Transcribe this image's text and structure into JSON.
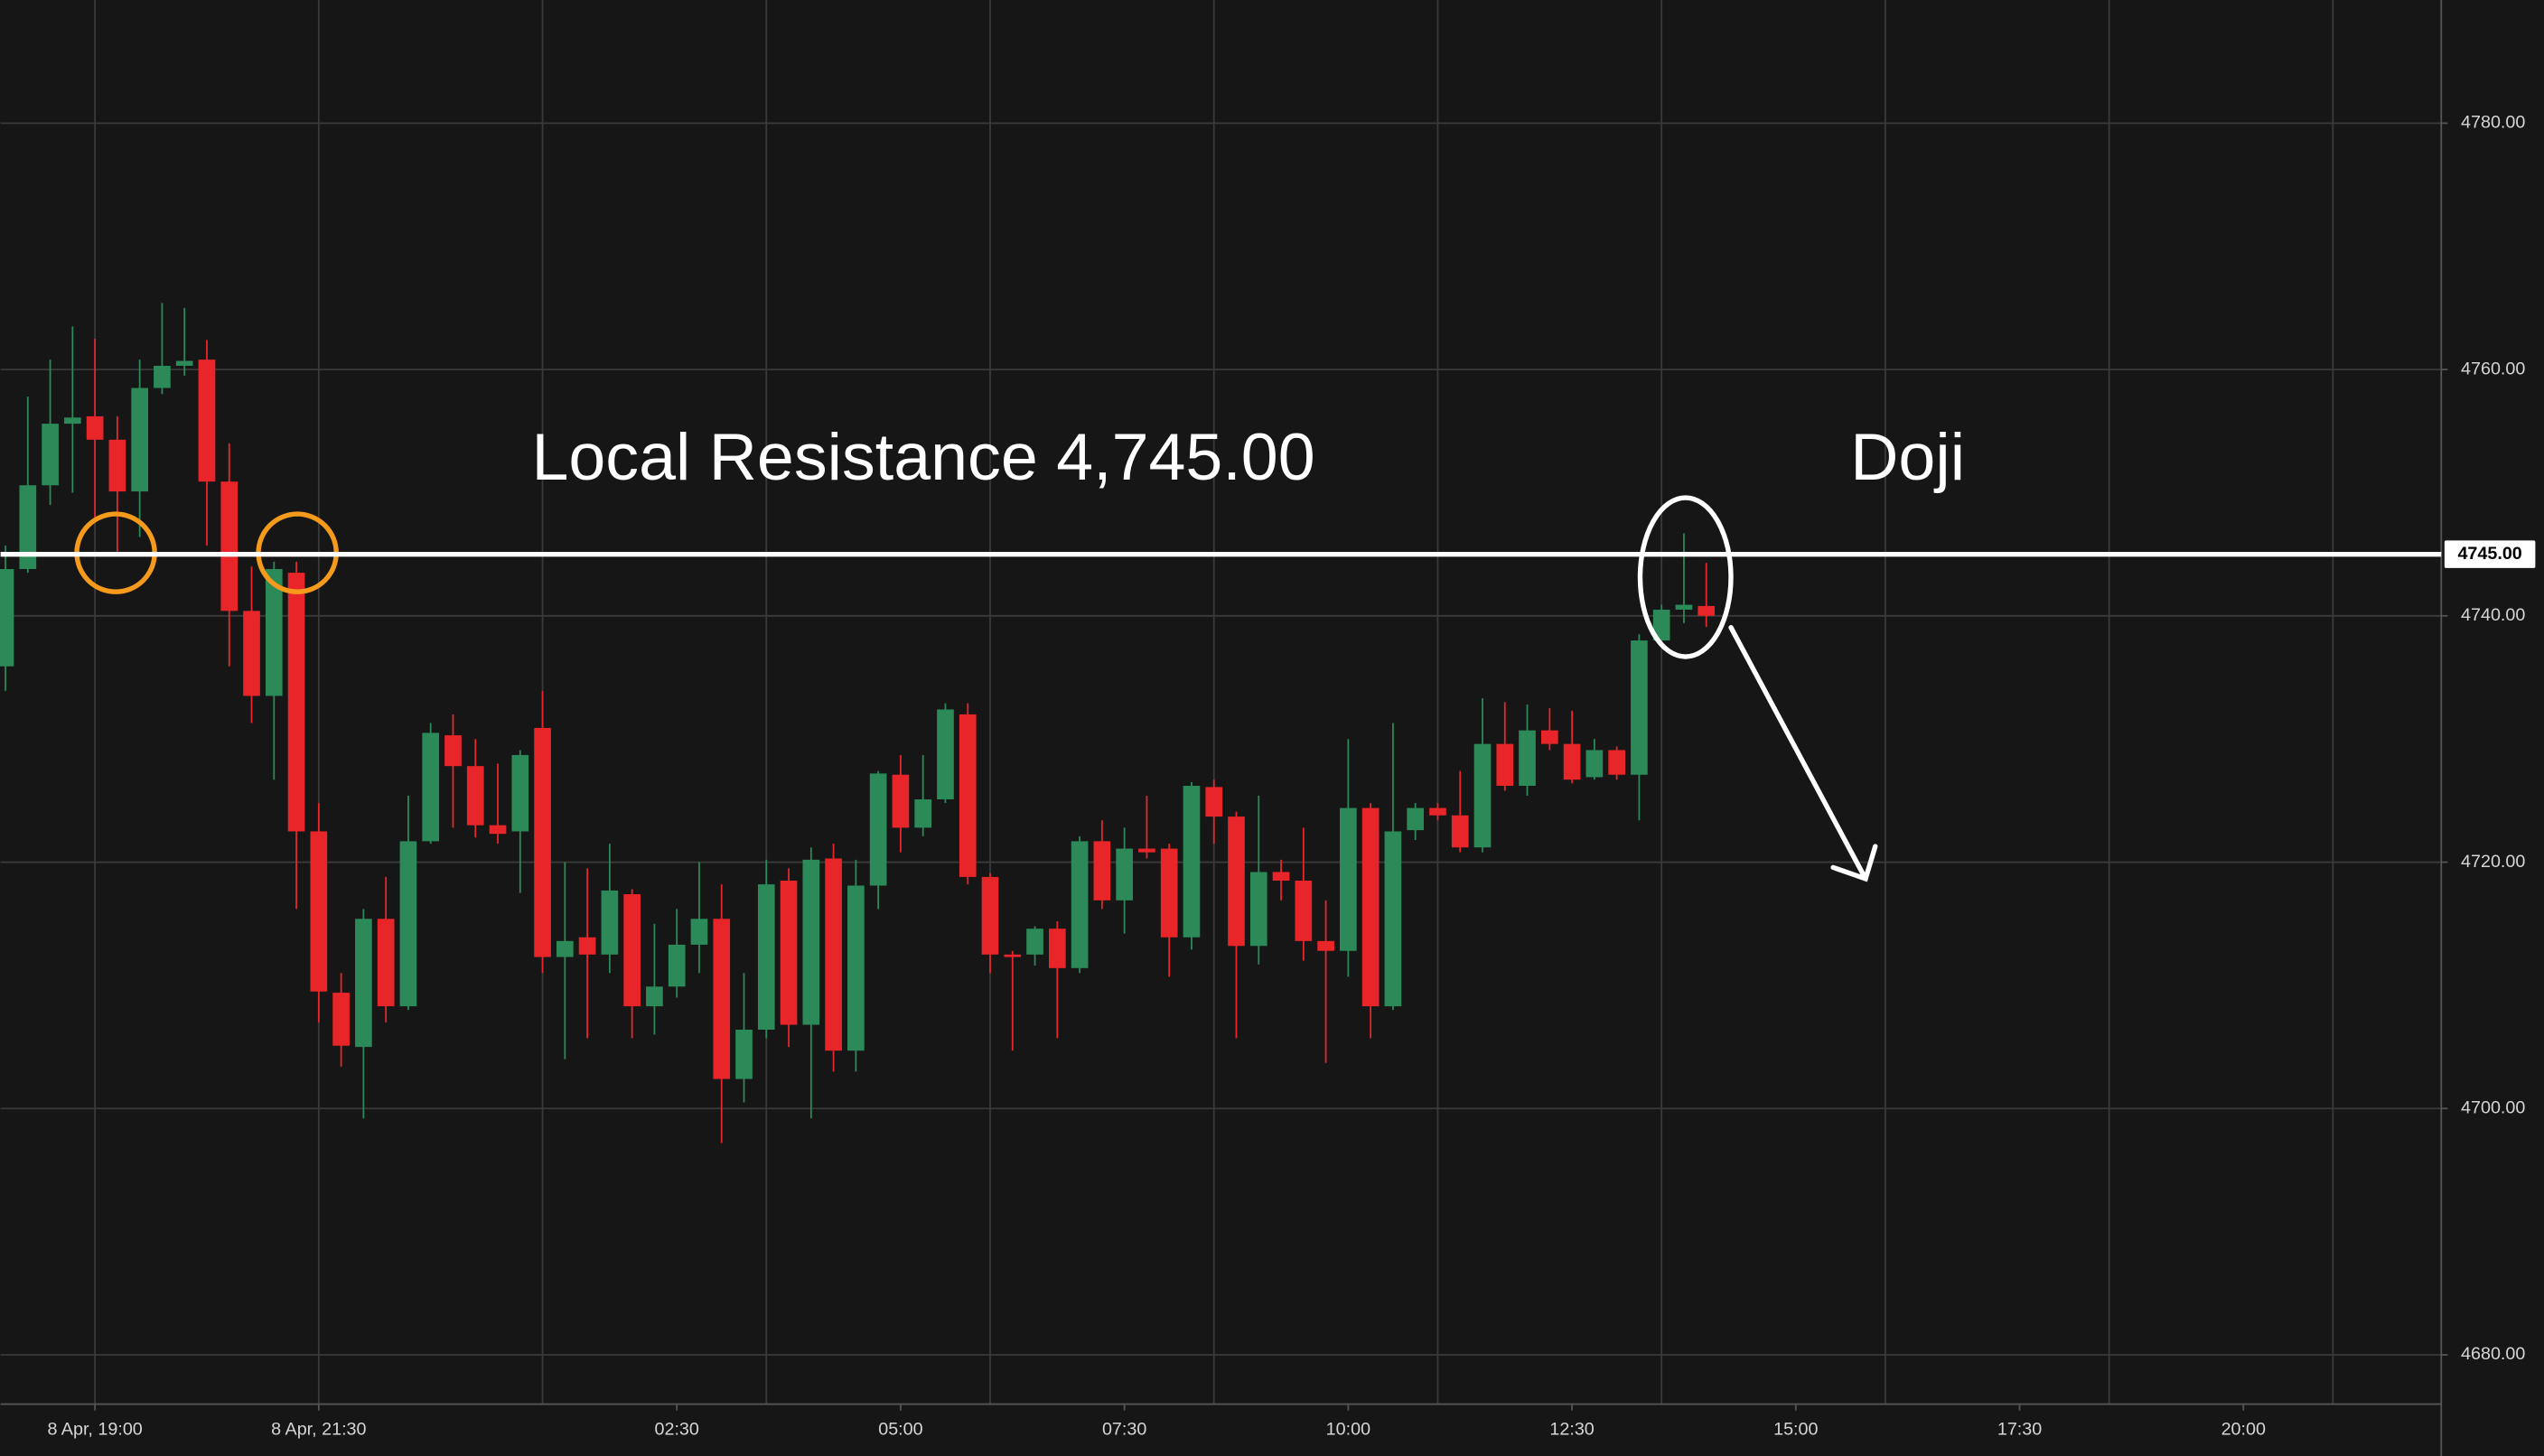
{
  "chart_data": {
    "type": "candlestick",
    "categories": [
      null,
      null,
      null,
      null,
      "8 Apr, 19:00",
      null,
      null,
      null,
      null,
      null,
      null,
      null,
      null,
      null,
      "8 Apr, 21:30",
      null,
      null,
      null,
      null,
      null,
      null,
      null,
      null,
      null,
      null,
      null,
      null,
      null,
      null,
      null,
      "02:30",
      null,
      null,
      null,
      null,
      null,
      null,
      null,
      null,
      null,
      "05:00",
      null,
      null,
      null,
      null,
      null,
      null,
      null,
      null,
      null,
      "07:30",
      null,
      null,
      null,
      null,
      null,
      null,
      null,
      null,
      null,
      "10:00",
      null,
      null,
      null,
      null,
      null,
      null,
      null,
      null,
      null,
      "12:30",
      null,
      null,
      null,
      null,
      null,
      null,
      null,
      null,
      null,
      "15:00",
      null,
      null,
      null,
      null,
      null,
      null,
      null,
      null,
      null,
      "17:30",
      null,
      null,
      null,
      null,
      null,
      null,
      null,
      null,
      null,
      "20:00",
      null,
      null,
      null,
      null,
      null,
      null,
      null,
      null
    ],
    "open": [
      4735.9,
      4743.8,
      4750.6,
      4755.6,
      4756.2,
      4754.3,
      4750.1,
      4758.5,
      4760.3,
      4760.8,
      4750.9,
      4740.4,
      4733.5,
      4743.5,
      4722.5,
      4709.4,
      4705.0,
      4715.4,
      4708.3,
      4721.7,
      4730.3,
      4727.8,
      4723.0,
      4722.5,
      4730.9,
      4712.3,
      4713.9,
      4712.5,
      4717.4,
      4708.3,
      4709.9,
      4713.3,
      4715.4,
      4702.4,
      4706.4,
      4718.5,
      4706.8,
      4720.3,
      4704.7,
      4718.1,
      4727.1,
      4722.8,
      4725.1,
      4732.0,
      4718.8,
      4712.5,
      4712.5,
      4714.6,
      4711.4,
      4721.7,
      4716.9,
      4721.1,
      4721.1,
      4713.9,
      4726.1,
      4723.7,
      4713.2,
      4719.2,
      4718.5,
      4713.6,
      4712.8,
      4724.4,
      4708.3,
      4722.6,
      4724.4,
      4723.8,
      4721.2,
      4729.6,
      4726.2,
      4730.7,
      4729.6,
      4726.9,
      4729.1,
      4727.1,
      4738.0,
      4740.5,
      4740.8,
      null,
      null,
      null,
      null,
      null,
      null,
      null,
      null,
      null,
      null,
      null,
      null,
      null,
      null,
      null,
      null,
      null,
      null,
      null,
      null,
      null,
      null,
      null,
      null,
      null,
      null,
      null,
      null,
      null,
      null,
      null,
      null
    ],
    "high": [
      4745.7,
      4757.8,
      4760.8,
      4763.5,
      4762.5,
      4756.2,
      4760.8,
      4765.4,
      4765.0,
      4762.4,
      4754.0,
      4744.0,
      4744.4,
      4744.4,
      4724.8,
      4711.0,
      4716.2,
      4718.8,
      4725.4,
      4731.3,
      4732.0,
      4730.0,
      4728.0,
      4729.1,
      4733.9,
      4720.0,
      4719.5,
      4721.5,
      4717.8,
      4715.0,
      4716.2,
      4720.0,
      4718.2,
      4711.0,
      4720.2,
      4719.5,
      4721.2,
      4721.5,
      4720.2,
      4727.4,
      4728.7,
      4728.7,
      4732.9,
      4732.9,
      4719.1,
      4712.8,
      4714.8,
      4715.2,
      4722.1,
      4723.4,
      4722.8,
      4725.4,
      4721.5,
      4726.5,
      4726.7,
      4724.1,
      4725.4,
      4720.2,
      4722.8,
      4716.9,
      4730.0,
      4724.8,
      4731.3,
      4724.8,
      4724.8,
      4727.4,
      4733.3,
      4733.0,
      4732.8,
      4732.5,
      4732.3,
      4730.0,
      4729.4,
      4738.5,
      4740.9,
      4746.7,
      4744.3,
      null,
      null,
      null,
      null,
      null,
      null,
      null,
      null,
      null,
      null,
      null,
      null,
      null,
      null,
      null,
      null,
      null,
      null,
      null,
      null,
      null,
      null,
      null,
      null,
      null,
      null,
      null,
      null,
      null,
      null,
      null,
      null
    ],
    "low": [
      4733.9,
      4743.5,
      4749.0,
      4750.0,
      4748.0,
      4745.1,
      4746.4,
      4758.0,
      4759.5,
      4745.7,
      4735.9,
      4731.3,
      4726.7,
      4716.2,
      4707.0,
      4703.4,
      4699.2,
      4707.0,
      4708.0,
      4721.5,
      4722.8,
      4722.0,
      4721.5,
      4717.5,
      4711.0,
      4704.0,
      4705.7,
      4711.0,
      4705.7,
      4706.0,
      4709.0,
      4711.0,
      4697.2,
      4700.5,
      4705.7,
      4705.0,
      4699.2,
      4703.0,
      4703.0,
      4716.2,
      4720.8,
      4722.1,
      4724.8,
      4718.2,
      4711.0,
      4704.7,
      4711.6,
      4705.7,
      4711.0,
      4716.2,
      4714.2,
      4720.3,
      4710.7,
      4712.9,
      4721.5,
      4705.7,
      4711.7,
      4716.9,
      4712.0,
      4703.7,
      4710.7,
      4705.7,
      4708.0,
      4721.8,
      4723.4,
      4720.8,
      4720.8,
      4725.8,
      4725.4,
      4729.1,
      4726.4,
      4726.7,
      4726.7,
      4723.4,
      4737.8,
      4739.4,
      4739.1,
      null,
      null,
      null,
      null,
      null,
      null,
      null,
      null,
      null,
      null,
      null,
      null,
      null,
      null,
      null,
      null,
      null,
      null,
      null,
      null,
      null,
      null,
      null,
      null,
      null,
      null,
      null,
      null,
      null,
      null,
      null,
      null
    ],
    "close": [
      4743.8,
      4750.6,
      4755.6,
      4756.1,
      4754.3,
      4750.1,
      4758.5,
      4760.3,
      4760.7,
      4750.9,
      4740.4,
      4733.5,
      4743.8,
      4722.5,
      4709.5,
      4705.1,
      4715.4,
      4708.3,
      4721.7,
      4730.5,
      4727.8,
      4723.0,
      4722.3,
      4728.7,
      4712.3,
      4713.6,
      4712.5,
      4717.7,
      4708.3,
      4709.9,
      4713.3,
      4715.4,
      4702.4,
      4706.4,
      4718.2,
      4706.8,
      4720.2,
      4704.7,
      4718.1,
      4727.2,
      4722.8,
      4725.1,
      4732.4,
      4718.8,
      4712.5,
      4712.3,
      4714.6,
      4711.4,
      4721.7,
      4716.9,
      4721.1,
      4720.8,
      4713.9,
      4726.2,
      4723.7,
      4713.2,
      4719.2,
      4718.5,
      4713.6,
      4712.8,
      4724.4,
      4708.3,
      4722.5,
      4724.4,
      4723.8,
      4721.2,
      4729.6,
      4726.2,
      4730.7,
      4729.6,
      4726.7,
      4729.1,
      4727.1,
      4738.0,
      4740.5,
      4740.9,
      4740.0,
      null,
      null,
      null,
      null,
      null,
      null,
      null,
      null,
      null,
      null,
      null,
      null,
      null,
      null,
      null,
      null,
      null,
      null,
      null,
      null,
      null,
      null,
      null,
      null,
      null,
      null,
      null,
      null,
      null,
      null,
      null,
      null
    ],
    "up_color": "#2b8a57",
    "down_color": "#e8262a",
    "ylim": [
      4676,
      4790
    ],
    "yticks": [
      {
        "value": 4680,
        "label": "4680.00"
      },
      {
        "value": 4700,
        "label": "4700.00"
      },
      {
        "value": 4720,
        "label": "4720.00"
      },
      {
        "value": 4740,
        "label": "4740.00"
      },
      {
        "value": 4760,
        "label": "4760.00"
      },
      {
        "value": 4780,
        "label": "4780.00"
      }
    ],
    "grid": true,
    "resistance": {
      "value": 4745,
      "label": "4745.00"
    },
    "annotations": [
      "Local Resistance 4,745.00",
      "Doji"
    ]
  }
}
